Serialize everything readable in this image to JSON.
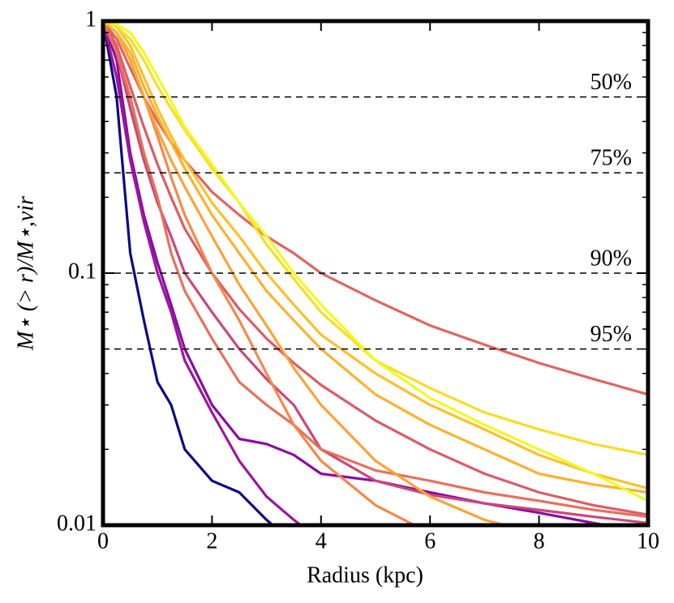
{
  "chart_data": {
    "type": "line",
    "xlabel": "Radius (kpc)",
    "ylabel": "M⋆ (> r)/M⋆,vir",
    "xlim": [
      0,
      10
    ],
    "ylim": [
      0.01,
      1
    ],
    "log_y": true,
    "xticks": [
      0,
      2,
      4,
      6,
      8,
      10
    ],
    "yticks": [
      0.01,
      0.1,
      1
    ],
    "yminorticks": [
      0.02,
      0.03,
      0.04,
      0.05,
      0.06,
      0.07,
      0.08,
      0.09,
      0.2,
      0.3,
      0.4,
      0.5,
      0.6,
      0.7,
      0.8,
      0.9
    ],
    "reference_lines": [
      {
        "value": 0.5,
        "label": "50%"
      },
      {
        "value": 0.25,
        "label": "75%"
      },
      {
        "value": 0.1,
        "label": "90%"
      },
      {
        "value": 0.05,
        "label": "95%"
      }
    ],
    "x": [
      0,
      0.25,
      0.5,
      0.75,
      1,
      1.25,
      1.5,
      2,
      2.5,
      3,
      3.5,
      4,
      5,
      6,
      7,
      8,
      9,
      10
    ],
    "series": [
      {
        "color": "#0d0887",
        "values": [
          1,
          0.5,
          0.12,
          0.065,
          0.037,
          0.03,
          0.02,
          0.015,
          0.0135,
          0.0105,
          0.0085,
          null,
          null,
          null,
          null,
          null,
          null,
          null
        ]
      },
      {
        "color": "#8b0aa5",
        "values": [
          1,
          0.7,
          0.3,
          0.17,
          0.11,
          0.075,
          0.05,
          0.03,
          0.022,
          0.021,
          0.019,
          0.016,
          0.015,
          0.0135,
          0.0122,
          0.0112,
          0.0102,
          0.0093
        ]
      },
      {
        "color": "#9c179e",
        "values": [
          1,
          0.6,
          0.28,
          0.16,
          0.1,
          0.07,
          0.045,
          0.028,
          0.018,
          0.013,
          0.0105,
          0.0087,
          null,
          null,
          null,
          null,
          null,
          null
        ]
      },
      {
        "color": "#cc4778",
        "values": [
          1,
          0.75,
          0.45,
          0.28,
          0.19,
          0.14,
          0.1,
          0.07,
          0.05,
          0.038,
          0.03,
          0.02,
          0.015,
          0.0132,
          0.0122,
          0.0115,
          0.0108,
          0.0102
        ]
      },
      {
        "color": "#e16462",
        "values": [
          1,
          0.85,
          0.65,
          0.5,
          0.4,
          0.33,
          0.28,
          0.21,
          0.17,
          0.14,
          0.12,
          0.1,
          0.078,
          0.062,
          0.052,
          0.044,
          0.038,
          0.033
        ]
      },
      {
        "color": "#db5c68",
        "values": [
          1,
          0.8,
          0.55,
          0.38,
          0.27,
          0.2,
          0.15,
          0.1,
          0.072,
          0.055,
          0.044,
          0.036,
          0.026,
          0.02,
          0.016,
          0.0135,
          0.012,
          0.011
        ]
      },
      {
        "color": "#e8705b",
        "values": [
          1,
          0.75,
          0.5,
          0.3,
          0.2,
          0.12,
          0.085,
          0.055,
          0.037,
          0.03,
          0.025,
          0.02,
          0.0165,
          0.015,
          0.0135,
          0.0125,
          0.0115,
          0.0108
        ]
      },
      {
        "color": "#f48849",
        "values": [
          1,
          0.9,
          0.7,
          0.5,
          0.35,
          0.24,
          0.17,
          0.1,
          0.065,
          0.04,
          0.025,
          0.018,
          0.012,
          0.0093,
          null,
          null,
          null,
          null
        ]
      },
      {
        "color": "#fca338",
        "values": [
          1,
          0.9,
          0.7,
          0.5,
          0.37,
          0.28,
          0.22,
          0.14,
          0.09,
          0.062,
          0.042,
          0.03,
          0.018,
          0.013,
          0.0105,
          0.0092,
          null,
          null
        ]
      },
      {
        "color": "#fdb130",
        "values": [
          1,
          0.9,
          0.75,
          0.55,
          0.42,
          0.33,
          0.26,
          0.17,
          0.12,
          0.085,
          0.065,
          0.05,
          0.033,
          0.025,
          0.02,
          0.016,
          0.0145,
          0.0135
        ]
      },
      {
        "color": "#fec029",
        "values": [
          1,
          0.95,
          0.8,
          0.6,
          0.45,
          0.35,
          0.28,
          0.19,
          0.14,
          0.1,
          0.075,
          0.057,
          0.04,
          0.03,
          0.024,
          0.019,
          0.016,
          0.014
        ]
      },
      {
        "color": "#f9dc24",
        "values": [
          1,
          0.95,
          0.85,
          0.7,
          0.55,
          0.45,
          0.37,
          0.26,
          0.19,
          0.13,
          0.095,
          0.07,
          0.045,
          0.035,
          0.028,
          0.024,
          0.021,
          0.019
        ]
      },
      {
        "color": "#f0f921",
        "values": [
          1,
          0.97,
          0.9,
          0.75,
          0.6,
          0.48,
          0.38,
          0.27,
          0.19,
          0.14,
          0.1,
          0.075,
          0.045,
          0.032,
          0.025,
          0.02,
          0.016,
          0.0125
        ]
      }
    ]
  }
}
